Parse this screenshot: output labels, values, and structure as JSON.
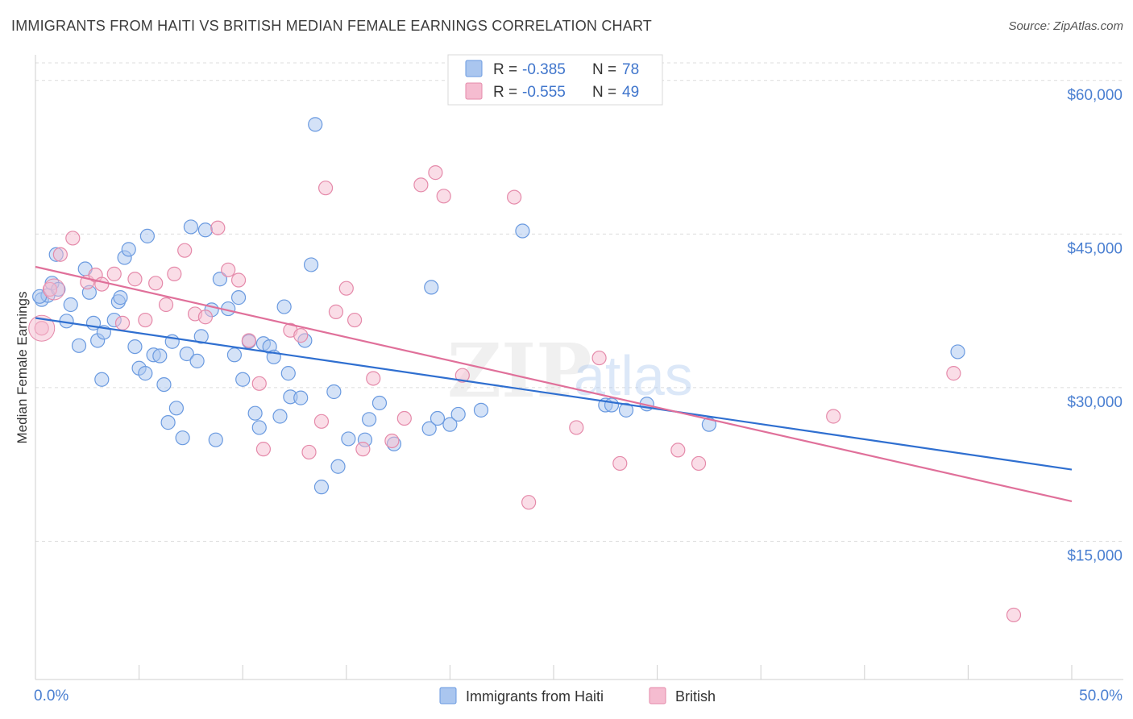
{
  "header": {
    "title": "IMMIGRANTS FROM HAITI VS BRITISH MEDIAN FEMALE EARNINGS CORRELATION CHART",
    "source": "Source: ZipAtlas.com"
  },
  "watermark": {
    "zip": "ZIP",
    "atlas": "atlas"
  },
  "legend_top": [
    {
      "r_label": "R = ",
      "r_value": "-0.385",
      "n_label": "N = ",
      "n_value": "78",
      "color": "#aac6ef",
      "stroke": "#6a9ae0"
    },
    {
      "r_label": "R = ",
      "r_value": "-0.555",
      "n_label": "N = ",
      "n_value": "49",
      "color": "#f5bcd0",
      "stroke": "#e58aaa"
    }
  ],
  "legend_bottom": [
    {
      "label": "Immigrants from Haiti",
      "color": "#aac6ef",
      "stroke": "#6a9ae0"
    },
    {
      "label": "British",
      "color": "#f5bcd0",
      "stroke": "#e58aaa"
    }
  ],
  "chart_data": {
    "type": "scatter",
    "ylabel": "Median Female Earnings",
    "xlim": [
      0,
      50
    ],
    "ylim": [
      1500,
      62500
    ],
    "x_tick_labels": [
      {
        "value": 0,
        "label": "0.0%"
      },
      {
        "value": 50,
        "label": "50.0%"
      }
    ],
    "y_ticks": [
      {
        "value": 15000,
        "label": "$15,000"
      },
      {
        "value": 30000,
        "label": "$30,000"
      },
      {
        "value": 45000,
        "label": "$45,000"
      },
      {
        "value": 60000,
        "label": "$60,000"
      }
    ],
    "grid": true,
    "series": [
      {
        "name": "Immigrants from Haiti",
        "color": "#aac6ef",
        "stroke": "#6a9ae0",
        "line_color": "#2f6fd0",
        "trend": [
          [
            0,
            36800
          ],
          [
            50,
            22000
          ]
        ],
        "points": [
          [
            0.3,
            38600
          ],
          [
            0.8,
            40200
          ],
          [
            1.0,
            43000
          ],
          [
            0.6,
            39000
          ],
          [
            1.1,
            39600
          ],
          [
            1.5,
            36500
          ],
          [
            1.7,
            38100
          ],
          [
            2.1,
            34100
          ],
          [
            2.4,
            41600
          ],
          [
            2.6,
            39300
          ],
          [
            2.8,
            36300
          ],
          [
            3.0,
            34600
          ],
          [
            3.3,
            35400
          ],
          [
            3.2,
            30800
          ],
          [
            3.8,
            36600
          ],
          [
            4.0,
            38400
          ],
          [
            4.1,
            38800
          ],
          [
            4.3,
            42700
          ],
          [
            4.5,
            43500
          ],
          [
            4.8,
            34000
          ],
          [
            5.0,
            31900
          ],
          [
            5.3,
            31400
          ],
          [
            5.4,
            44800
          ],
          [
            5.7,
            33200
          ],
          [
            6.0,
            33100
          ],
          [
            6.2,
            30300
          ],
          [
            6.4,
            26600
          ],
          [
            6.6,
            34500
          ],
          [
            6.8,
            28000
          ],
          [
            7.1,
            25100
          ],
          [
            7.3,
            33300
          ],
          [
            7.5,
            45700
          ],
          [
            7.8,
            32600
          ],
          [
            8.0,
            35000
          ],
          [
            8.2,
            45400
          ],
          [
            8.5,
            37600
          ],
          [
            8.7,
            24900
          ],
          [
            8.9,
            40600
          ],
          [
            9.3,
            37700
          ],
          [
            9.6,
            33200
          ],
          [
            9.8,
            38800
          ],
          [
            10.0,
            30800
          ],
          [
            10.3,
            34500
          ],
          [
            10.6,
            27500
          ],
          [
            10.8,
            26100
          ],
          [
            11.0,
            34300
          ],
          [
            11.3,
            34000
          ],
          [
            11.5,
            33000
          ],
          [
            11.8,
            27200
          ],
          [
            12.0,
            37900
          ],
          [
            12.2,
            31400
          ],
          [
            12.3,
            29100
          ],
          [
            12.8,
            29000
          ],
          [
            13.0,
            34600
          ],
          [
            13.3,
            42000
          ],
          [
            13.5,
            55700
          ],
          [
            13.8,
            20300
          ],
          [
            14.4,
            29600
          ],
          [
            14.6,
            22300
          ],
          [
            15.1,
            25000
          ],
          [
            15.9,
            24900
          ],
          [
            16.1,
            26900
          ],
          [
            16.6,
            28500
          ],
          [
            17.3,
            24500
          ],
          [
            19.1,
            39800
          ],
          [
            19.0,
            26000
          ],
          [
            19.4,
            27000
          ],
          [
            20.0,
            26400
          ],
          [
            20.4,
            27400
          ],
          [
            21.5,
            27800
          ],
          [
            23.5,
            45300
          ],
          [
            27.5,
            28300
          ],
          [
            27.8,
            28300
          ],
          [
            28.5,
            27800
          ],
          [
            29.5,
            28400
          ],
          [
            32.5,
            26400
          ],
          [
            44.5,
            33500
          ],
          [
            0.2,
            38900
          ]
        ]
      },
      {
        "name": "British",
        "color": "#f5bcd0",
        "stroke": "#e58aaa",
        "line_color": "#e0709a",
        "trend": [
          [
            0,
            41800
          ],
          [
            50,
            18900
          ]
        ],
        "points": [
          [
            0.3,
            35800
          ],
          [
            0.7,
            39600
          ],
          [
            1.2,
            43000
          ],
          [
            1.8,
            44600
          ],
          [
            2.5,
            40300
          ],
          [
            2.9,
            41000
          ],
          [
            3.2,
            40100
          ],
          [
            3.8,
            41100
          ],
          [
            4.2,
            36300
          ],
          [
            4.8,
            40600
          ],
          [
            5.3,
            36600
          ],
          [
            5.8,
            40200
          ],
          [
            6.3,
            38100
          ],
          [
            6.7,
            41100
          ],
          [
            7.2,
            43400
          ],
          [
            7.7,
            37200
          ],
          [
            8.2,
            36900
          ],
          [
            8.8,
            45600
          ],
          [
            9.3,
            41500
          ],
          [
            9.8,
            40500
          ],
          [
            10.3,
            34600
          ],
          [
            10.8,
            30400
          ],
          [
            11.0,
            24000
          ],
          [
            12.3,
            35600
          ],
          [
            12.8,
            35100
          ],
          [
            13.2,
            23700
          ],
          [
            13.8,
            26700
          ],
          [
            14.0,
            49500
          ],
          [
            14.5,
            37400
          ],
          [
            15.0,
            39700
          ],
          [
            15.4,
            36600
          ],
          [
            15.8,
            24000
          ],
          [
            16.3,
            30900
          ],
          [
            17.2,
            24800
          ],
          [
            17.8,
            27000
          ],
          [
            18.6,
            49800
          ],
          [
            19.3,
            51000
          ],
          [
            19.7,
            48700
          ],
          [
            20.6,
            31200
          ],
          [
            23.1,
            48600
          ],
          [
            23.8,
            18800
          ],
          [
            26.1,
            26100
          ],
          [
            27.2,
            32900
          ],
          [
            28.2,
            22600
          ],
          [
            31.0,
            23900
          ],
          [
            32.0,
            22600
          ],
          [
            38.5,
            27200
          ],
          [
            44.3,
            31400
          ],
          [
            47.2,
            7800
          ]
        ]
      }
    ]
  }
}
